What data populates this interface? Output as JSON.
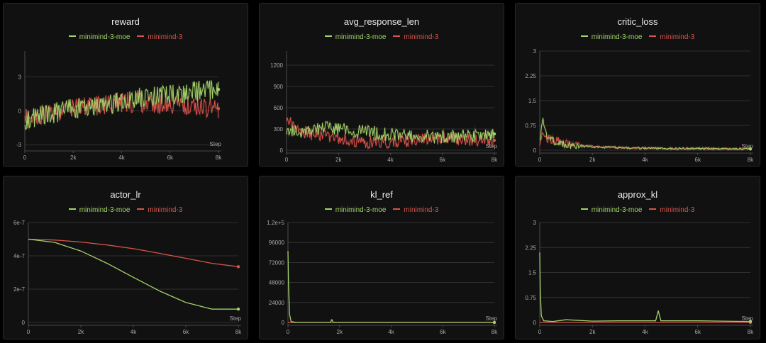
{
  "legend": {
    "moe": {
      "label": "minimind-3-moe",
      "color": "#a4d36a"
    },
    "base": {
      "label": "minimind-3",
      "color": "#d9534a"
    }
  },
  "x_axis_label": "Step",
  "chart_data": [
    {
      "id": "reward",
      "type": "line",
      "title": "reward",
      "xlim": [
        0,
        8000
      ],
      "ylim": [
        -3.3,
        5.3
      ],
      "xticks": [
        0,
        2000,
        4000,
        6000,
        8000
      ],
      "xtick_labels": [
        "0",
        "2k",
        "4k",
        "6k",
        "8k"
      ],
      "yticks": [
        -3,
        0,
        3
      ],
      "ytick_labels": [
        "-3",
        "0",
        "3"
      ],
      "series": [
        {
          "name": "minimind-3-moe",
          "x": [
            0,
            1000,
            2000,
            3000,
            4000,
            5000,
            6000,
            7000,
            8000
          ],
          "y": [
            -0.8,
            -0.3,
            0.2,
            0.3,
            0.8,
            1.3,
            1.4,
            1.7,
            1.9
          ]
        },
        {
          "name": "minimind-3",
          "x": [
            0,
            1000,
            2000,
            3000,
            4000,
            5000,
            6000,
            7000,
            8000
          ],
          "y": [
            -0.6,
            -0.2,
            0.3,
            0.5,
            0.8,
            0.7,
            0.6,
            0.4,
            0.2
          ]
        }
      ]
    },
    {
      "id": "avg_response_len",
      "type": "line",
      "title": "avg_response_len",
      "xlim": [
        0,
        8000
      ],
      "ylim": [
        0,
        1400
      ],
      "xticks": [
        0,
        2000,
        4000,
        6000,
        8000
      ],
      "xtick_labels": [
        "0",
        "2k",
        "4k",
        "6k",
        "8k"
      ],
      "yticks": [
        0,
        300,
        600,
        900,
        1200
      ],
      "ytick_labels": [
        "0",
        "300",
        "600",
        "900",
        "1200"
      ],
      "series": [
        {
          "name": "minimind-3-moe",
          "x": [
            0,
            500,
            1000,
            2000,
            3000,
            4000,
            5000,
            6000,
            7000,
            8000
          ],
          "y": [
            300,
            260,
            320,
            300,
            260,
            220,
            200,
            190,
            200,
            230
          ]
        },
        {
          "name": "minimind-3",
          "x": [
            0,
            500,
            1000,
            2000,
            3000,
            4000,
            5000,
            6000,
            7000,
            8000
          ],
          "y": [
            420,
            280,
            230,
            180,
            120,
            110,
            150,
            180,
            150,
            140
          ]
        }
      ]
    },
    {
      "id": "critic_loss",
      "type": "line",
      "title": "critic_loss",
      "xlim": [
        0,
        8000
      ],
      "ylim": [
        0,
        3
      ],
      "xticks": [
        0,
        2000,
        4000,
        6000,
        8000
      ],
      "xtick_labels": [
        "0",
        "2k",
        "4k",
        "6k",
        "8k"
      ],
      "yticks": [
        0,
        0.75,
        1.5,
        2.25,
        3
      ],
      "ytick_labels": [
        "0",
        "0.75",
        "1.5",
        "2.25",
        "3"
      ],
      "series": [
        {
          "name": "minimind-3-moe",
          "x": [
            0,
            100,
            300,
            600,
            1000,
            2000,
            3000,
            4000,
            6000,
            8000
          ],
          "y": [
            0.2,
            1.0,
            0.4,
            0.25,
            0.15,
            0.1,
            0.08,
            0.06,
            0.05,
            0.04
          ]
        },
        {
          "name": "minimind-3",
          "x": [
            0,
            100,
            300,
            600,
            1000,
            2000,
            3000,
            4000,
            6000,
            8000
          ],
          "y": [
            0.2,
            0.6,
            0.35,
            0.3,
            0.2,
            0.12,
            0.08,
            0.06,
            0.05,
            0.04
          ]
        }
      ]
    },
    {
      "id": "actor_lr",
      "type": "line",
      "title": "actor_lr",
      "xlim": [
        0,
        8000
      ],
      "ylim": [
        0,
        6e-07
      ],
      "xticks": [
        0,
        2000,
        4000,
        6000,
        8000
      ],
      "xtick_labels": [
        "0",
        "2k",
        "4k",
        "6k",
        "8k"
      ],
      "yticks": [
        0,
        2e-07,
        4e-07,
        6e-07
      ],
      "ytick_labels": [
        "0",
        "2e-7",
        "4e-7",
        "6e-7"
      ],
      "series": [
        {
          "name": "minimind-3-moe",
          "x": [
            0,
            1000,
            2000,
            3000,
            4000,
            5000,
            6000,
            7000,
            8000
          ],
          "y": [
            5e-07,
            4.81e-07,
            4.29e-07,
            3.55e-07,
            2.71e-07,
            1.89e-07,
            1.2e-07,
            8e-08,
            8e-08
          ]
        },
        {
          "name": "minimind-3",
          "x": [
            0,
            1000,
            2000,
            3000,
            4000,
            5000,
            6000,
            7000,
            8000
          ],
          "y": [
            5e-07,
            4.95e-07,
            4.83e-07,
            4.65e-07,
            4.43e-07,
            4.15e-07,
            3.85e-07,
            3.55e-07,
            3.35e-07
          ]
        }
      ]
    },
    {
      "id": "kl_ref",
      "type": "line",
      "title": "kl_ref",
      "xlim": [
        0,
        8000
      ],
      "ylim": [
        0,
        120000
      ],
      "xticks": [
        0,
        2000,
        4000,
        6000,
        8000
      ],
      "xtick_labels": [
        "0",
        "2k",
        "4k",
        "6k",
        "8k"
      ],
      "yticks": [
        0,
        24000,
        48000,
        72000,
        96000,
        120000
      ],
      "ytick_labels": [
        "0",
        "24000",
        "48000",
        "72000",
        "96000",
        "1.2e+5"
      ],
      "series": [
        {
          "name": "minimind-3-moe",
          "x": [
            0,
            20,
            60,
            120,
            300,
            1000,
            1650,
            1700,
            1750,
            3000,
            5000,
            8000
          ],
          "y": [
            86000,
            50000,
            10000,
            1000,
            200,
            100,
            100,
            3500,
            100,
            80,
            60,
            50
          ]
        },
        {
          "name": "minimind-3",
          "x": [
            0,
            8000
          ],
          "y": [
            0,
            0
          ]
        }
      ]
    },
    {
      "id": "approx_kl",
      "type": "line",
      "title": "approx_kl",
      "xlim": [
        0,
        8000
      ],
      "ylim": [
        0,
        3
      ],
      "xticks": [
        0,
        2000,
        4000,
        6000,
        8000
      ],
      "xtick_labels": [
        "0",
        "2k",
        "4k",
        "6k",
        "8k"
      ],
      "yticks": [
        0,
        0.75,
        1.5,
        2.25,
        3
      ],
      "ytick_labels": [
        "0",
        "0.75",
        "1.5",
        "2.25",
        "3"
      ],
      "series": [
        {
          "name": "minimind-3-moe",
          "x": [
            0,
            20,
            60,
            150,
            500,
            1000,
            2000,
            3000,
            4400,
            4500,
            4600,
            5000,
            6000,
            8000
          ],
          "y": [
            2.1,
            1.0,
            0.2,
            0.05,
            0.03,
            0.08,
            0.04,
            0.05,
            0.05,
            0.35,
            0.05,
            0.05,
            0.05,
            0.03
          ]
        },
        {
          "name": "minimind-3",
          "x": [
            0,
            8000
          ],
          "y": [
            0,
            0
          ]
        }
      ]
    }
  ]
}
